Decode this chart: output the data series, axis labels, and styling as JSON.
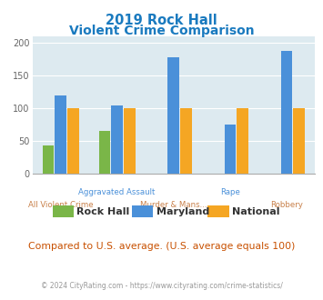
{
  "title_line1": "2019 Rock Hall",
  "title_line2": "Violent Crime Comparison",
  "title_color": "#1a7abf",
  "categories": [
    "All Violent Crime",
    "Aggravated Assault",
    "Murder & Mans...",
    "Rape",
    "Robbery"
  ],
  "series": {
    "Rock Hall": [
      43,
      65,
      0,
      0,
      0
    ],
    "Maryland": [
      120,
      105,
      178,
      75,
      187
    ],
    "National": [
      100,
      100,
      100,
      100,
      100
    ]
  },
  "colors": {
    "Rock Hall": "#7ab648",
    "Maryland": "#4a90d9",
    "National": "#f5a623"
  },
  "ylim": [
    0,
    210
  ],
  "yticks": [
    0,
    50,
    100,
    150,
    200
  ],
  "plot_bg_color": "#ddeaf0",
  "subtitle_note": "Compared to U.S. average. (U.S. average equals 100)",
  "subtitle_note_color": "#c85000",
  "copyright_text": "© 2024 CityRating.com - https://www.cityrating.com/crime-statistics/",
  "copyright_color": "#999999",
  "bar_width": 0.22,
  "xtick_row1_labels": [
    "Aggravated Assault",
    "Rape"
  ],
  "xtick_row1_positions": [
    1,
    3
  ],
  "xtick_row2_labels": [
    "All Violent Crime",
    "Murder & Mans...",
    "Robbery"
  ],
  "xtick_row2_positions": [
    0,
    2,
    4
  ],
  "xtick_row1_color": "#4a90d9",
  "xtick_row2_color": "#c8804a",
  "legend_items": [
    "Rock Hall",
    "Maryland",
    "National"
  ],
  "legend_colors": [
    "#7ab648",
    "#4a90d9",
    "#f5a623"
  ]
}
